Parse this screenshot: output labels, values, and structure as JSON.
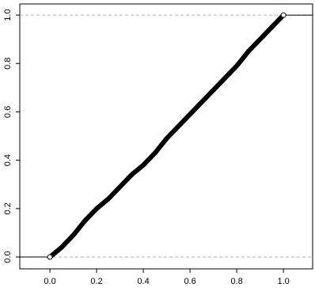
{
  "chart_data": {
    "type": "ecdf",
    "x": [
      0,
      0.05,
      0.1,
      0.15,
      0.2,
      0.25,
      0.3,
      0.35,
      0.4,
      0.45,
      0.5,
      0.55,
      0.6,
      0.65,
      0.7,
      0.75,
      0.8,
      0.85,
      0.9,
      0.95,
      1.0
    ],
    "values": [
      0,
      0.04,
      0.09,
      0.15,
      0.2,
      0.24,
      0.29,
      0.34,
      0.38,
      0.43,
      0.49,
      0.54,
      0.59,
      0.64,
      0.69,
      0.74,
      0.79,
      0.85,
      0.9,
      0.95,
      1.0
    ],
    "color": "#000000",
    "reference_lines": [
      0,
      1
    ],
    "reference_color": "#b0b0b0",
    "xlim": [
      -0.129,
      1.125
    ],
    "ylim": [
      -0.049,
      1.046
    ],
    "xticks": [
      {
        "value": 0,
        "label": "0.0"
      },
      0.2,
      0.4,
      0.6,
      0.8,
      {
        "value": 1,
        "label": "1.0"
      }
    ],
    "yticks": [
      {
        "value": 0,
        "label": "0.0"
      },
      0.2,
      0.4,
      0.6,
      0.8,
      {
        "value": 1,
        "label": "1.0"
      }
    ]
  }
}
